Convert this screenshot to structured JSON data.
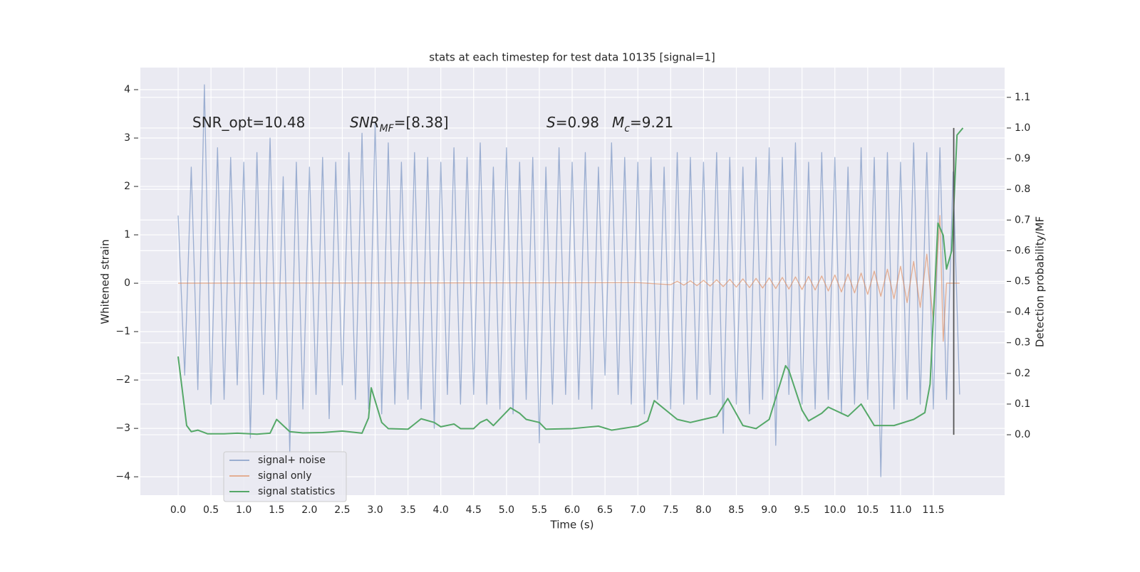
{
  "chart_data": {
    "type": "line",
    "title": "stats at each timestep for test data 10135 [signal=1]",
    "x_label": "Time (s)",
    "y_label": "Whitened strain",
    "y2_label": "Detection probability/MF",
    "xlim": [
      -0.575,
      12.585
    ],
    "ylim": [
      -4.38,
      4.456
    ],
    "y2lim": [
      -0.197,
      1.197
    ],
    "xticks": [
      {
        "value": 0,
        "label": "0.0"
      },
      0.5,
      {
        "value": 1,
        "label": "1.0"
      },
      1.5,
      {
        "value": 2,
        "label": "2.0"
      },
      2.5,
      {
        "value": 3,
        "label": "3.0"
      },
      3.5,
      {
        "value": 4,
        "label": "4.0"
      },
      4.5,
      {
        "value": 5,
        "label": "5.0"
      },
      5.5,
      {
        "value": 6,
        "label": "6.0"
      },
      6.5,
      {
        "value": 7,
        "label": "7.0"
      },
      7.5,
      {
        "value": 8,
        "label": "8.0"
      },
      8.5,
      {
        "value": 9,
        "label": "9.0"
      },
      9.5,
      {
        "value": 10,
        "label": "10.0"
      },
      10.5,
      {
        "value": 11,
        "label": "11.0"
      },
      11.5
    ],
    "yticks": [
      {
        "value": -4,
        "label": "−4"
      },
      {
        "value": -3,
        "label": "−3"
      },
      {
        "value": -2,
        "label": "−2"
      },
      {
        "value": -1,
        "label": "−1"
      },
      0,
      1,
      2,
      3,
      4
    ],
    "y2ticks": [
      {
        "value": 0,
        "label": "0.0"
      },
      0.1,
      0.2,
      0.3,
      0.4,
      0.5,
      0.6,
      0.7,
      0.8,
      0.9,
      {
        "value": 1,
        "label": "1.0"
      },
      1.1
    ],
    "grid": true,
    "legend_loc": "lower left",
    "x": [
      0.0,
      0.1,
      0.2,
      0.3,
      0.4,
      0.5,
      0.6,
      0.7,
      0.8,
      0.9,
      1.0,
      1.1,
      1.2,
      1.3,
      1.4,
      1.5,
      1.6,
      1.7,
      1.8,
      1.9,
      2.0,
      2.1,
      2.2,
      2.3,
      2.4,
      2.5,
      2.6,
      2.7,
      2.8,
      2.9,
      3.0,
      3.1,
      3.2,
      3.3,
      3.4,
      3.5,
      3.6,
      3.7,
      3.8,
      3.9,
      4.0,
      4.1,
      4.2,
      4.3,
      4.4,
      4.5,
      4.6,
      4.7,
      4.8,
      4.9,
      5.0,
      5.1,
      5.2,
      5.3,
      5.4,
      5.5,
      5.6,
      5.7,
      5.8,
      5.9,
      6.0,
      6.1,
      6.2,
      6.3,
      6.4,
      6.5,
      6.6,
      6.7,
      6.8,
      6.9,
      7.0,
      7.1,
      7.2,
      7.3,
      7.4,
      7.5,
      7.6,
      7.7,
      7.8,
      7.9,
      8.0,
      8.1,
      8.2,
      8.3,
      8.4,
      8.5,
      8.6,
      8.7,
      8.8,
      8.9,
      9.0,
      9.1,
      9.2,
      9.3,
      9.4,
      9.5,
      9.6,
      9.7,
      9.8,
      9.9,
      10.0,
      10.1,
      10.2,
      10.3,
      10.4,
      10.5,
      10.6,
      10.7,
      10.8,
      10.9,
      11.0,
      11.1,
      11.2,
      11.3,
      11.4,
      11.5,
      11.6,
      11.7,
      11.8,
      11.9
    ],
    "series": [
      {
        "name": "signal+ noise",
        "color": "#4c72b0",
        "opacity": 0.5,
        "values": [
          1.4,
          -1.9,
          2.4,
          -2.2,
          4.1,
          -2.5,
          2.8,
          -2.4,
          2.6,
          -2.1,
          2.5,
          -3.2,
          2.7,
          -2.3,
          3.0,
          -2.4,
          2.2,
          -3.5,
          2.5,
          -2.6,
          2.4,
          -2.3,
          2.6,
          -2.8,
          2.5,
          -2.1,
          2.7,
          -2.4,
          3.1,
          -2.6,
          3.3,
          -2.7,
          2.9,
          -2.5,
          2.5,
          -2.4,
          2.7,
          -2.6,
          2.6,
          -3.0,
          2.5,
          -2.3,
          2.8,
          -2.5,
          2.6,
          -2.3,
          2.9,
          -2.5,
          2.4,
          -2.6,
          2.8,
          -2.7,
          2.5,
          -2.4,
          2.6,
          -3.3,
          2.4,
          -2.5,
          2.8,
          -2.3,
          2.5,
          -2.4,
          2.7,
          -2.6,
          2.4,
          -1.9,
          2.9,
          -2.3,
          2.6,
          -2.5,
          2.5,
          -2.7,
          2.6,
          -2.4,
          2.4,
          -2.6,
          2.7,
          -2.5,
          2.6,
          -2.4,
          2.5,
          -2.3,
          2.7,
          -3.1,
          2.6,
          -2.5,
          2.4,
          -2.7,
          2.6,
          -2.4,
          2.8,
          -3.35,
          2.6,
          -2.3,
          2.9,
          -2.5,
          2.5,
          -2.6,
          2.7,
          -2.4,
          2.6,
          -2.7,
          2.4,
          -2.5,
          2.8,
          -2.4,
          2.6,
          -4.0,
          2.7,
          -2.6,
          2.5,
          -2.4,
          2.9,
          -2.5,
          2.7,
          -2.6,
          2.8,
          -2.4,
          2.3,
          -2.3
        ]
      },
      {
        "name": "signal only",
        "color": "#dd8452",
        "opacity": 0.6,
        "x": [
          0.0,
          7.0,
          7.5,
          7.6,
          7.7,
          7.8,
          7.9,
          8.0,
          8.1,
          8.2,
          8.3,
          8.4,
          8.5,
          8.6,
          8.7,
          8.8,
          8.9,
          9.0,
          9.1,
          9.2,
          9.3,
          9.4,
          9.5,
          9.6,
          9.7,
          9.8,
          9.9,
          10.0,
          10.1,
          10.2,
          10.3,
          10.4,
          10.5,
          10.6,
          10.7,
          10.8,
          10.9,
          11.0,
          11.1,
          11.2,
          11.3,
          11.4,
          11.5,
          11.6,
          11.65,
          11.7,
          11.9
        ],
        "values": [
          0.0,
          0.01,
          -0.03,
          0.04,
          -0.04,
          0.05,
          -0.05,
          0.06,
          -0.06,
          0.07,
          -0.07,
          0.08,
          -0.08,
          0.09,
          -0.09,
          0.1,
          -0.1,
          0.11,
          -0.11,
          0.12,
          -0.12,
          0.13,
          -0.13,
          0.14,
          -0.14,
          0.15,
          -0.16,
          0.17,
          -0.18,
          0.19,
          -0.2,
          0.21,
          -0.23,
          0.25,
          -0.27,
          0.29,
          -0.32,
          0.35,
          -0.4,
          0.45,
          -0.5,
          0.6,
          -0.8,
          1.4,
          -1.2,
          0.0,
          0.0
        ]
      },
      {
        "name": "signal statistics",
        "color": "#55a868",
        "opacity": 1,
        "axis": "y2",
        "x": [
          0.0,
          0.13,
          0.2,
          0.3,
          0.45,
          0.7,
          0.9,
          1.2,
          1.4,
          1.5,
          1.7,
          1.9,
          2.2,
          2.5,
          2.8,
          2.9,
          2.94,
          3.1,
          3.2,
          3.5,
          3.6,
          3.7,
          3.9,
          4.0,
          4.2,
          4.3,
          4.5,
          4.6,
          4.7,
          4.8,
          5.06,
          5.2,
          5.3,
          5.5,
          5.6,
          6.0,
          6.4,
          6.6,
          7.0,
          7.15,
          7.25,
          7.6,
          7.8,
          8.0,
          8.2,
          8.37,
          8.6,
          8.8,
          9.0,
          9.25,
          9.3,
          9.5,
          9.6,
          9.8,
          9.9,
          10.2,
          10.4,
          10.6,
          10.9,
          11.2,
          11.37,
          11.45,
          11.57,
          11.65,
          11.7,
          11.78,
          11.86,
          11.95
        ],
        "values": [
          0.255,
          0.03,
          0.01,
          0.015,
          0.003,
          0.003,
          0.005,
          0.002,
          0.005,
          0.05,
          0.01,
          0.006,
          0.007,
          0.012,
          0.005,
          0.055,
          0.153,
          0.04,
          0.02,
          0.018,
          0.035,
          0.052,
          0.04,
          0.026,
          0.035,
          0.02,
          0.02,
          0.04,
          0.05,
          0.03,
          0.088,
          0.07,
          0.05,
          0.04,
          0.018,
          0.02,
          0.028,
          0.015,
          0.028,
          0.045,
          0.111,
          0.05,
          0.04,
          0.05,
          0.06,
          0.118,
          0.03,
          0.02,
          0.05,
          0.225,
          0.21,
          0.08,
          0.045,
          0.07,
          0.09,
          0.06,
          0.1,
          0.03,
          0.03,
          0.05,
          0.072,
          0.165,
          0.69,
          0.65,
          0.54,
          0.6,
          0.977,
          1.0
        ]
      }
    ],
    "detection_line": {
      "x": 11.81,
      "ymin": 0,
      "ymax": 1,
      "axis": "y2",
      "color": "#555555"
    },
    "annotations": [
      {
        "runs": [
          {
            "text": "SNR_opt=10.48",
            "style": "normal"
          }
        ]
      },
      {
        "runs": [
          {
            "text": "SNR",
            "style": "italic"
          },
          {
            "text": "MF",
            "style": "sub"
          },
          {
            "text": "=[8.38]",
            "style": "normal"
          }
        ]
      },
      {
        "runs": [
          {
            "text": "S",
            "style": "italic"
          },
          {
            "text": "=0.98",
            "style": "normal"
          }
        ]
      },
      {
        "runs": [
          {
            "text": "M",
            "style": "italic"
          },
          {
            "text": "c",
            "style": "sub"
          },
          {
            "text": "=9.21",
            "style": "normal"
          }
        ]
      }
    ]
  }
}
